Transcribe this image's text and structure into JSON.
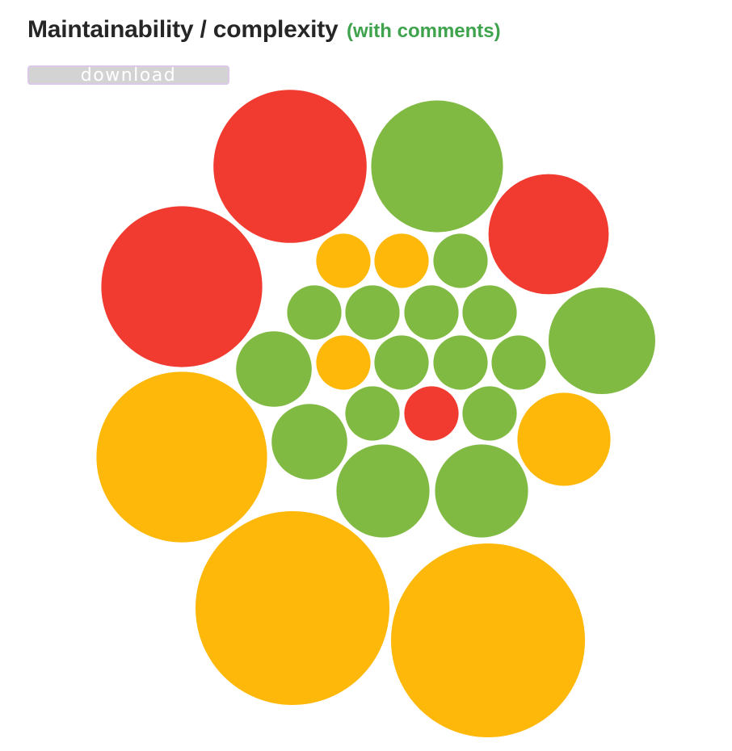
{
  "header": {
    "title": "Maintainability / complexity",
    "subtitle": "(with comments)",
    "subtitle_color": "#3fa34d"
  },
  "toolbar": {
    "download_label": "download"
  },
  "colors": {
    "red": "#f13b30",
    "green": "#80ba42",
    "yellow": "#fdb809"
  },
  "chart_data": {
    "type": "bubble",
    "title": "Maintainability / complexity",
    "subtitle": "(with comments)",
    "note": "Packed bubbles; each bubble's size encodes a value (relative to the largest = 1.0), color encodes maintainability status.",
    "bubbles": [
      {
        "status": "red",
        "size": 0.79
      },
      {
        "status": "green",
        "size": 0.68
      },
      {
        "status": "red",
        "size": 0.62
      },
      {
        "status": "red",
        "size": 0.83
      },
      {
        "status": "green",
        "size": 0.55
      },
      {
        "status": "yellow",
        "size": 0.88
      },
      {
        "status": "yellow",
        "size": 0.48
      },
      {
        "status": "yellow",
        "size": 1.0
      },
      {
        "status": "yellow",
        "size": 1.0
      },
      {
        "status": "green",
        "size": 0.48
      },
      {
        "status": "green",
        "size": 0.48
      },
      {
        "status": "green",
        "size": 0.39
      },
      {
        "status": "green",
        "size": 0.39
      },
      {
        "status": "yellow",
        "size": 0.28
      },
      {
        "status": "yellow",
        "size": 0.28
      },
      {
        "status": "green",
        "size": 0.28
      },
      {
        "status": "green",
        "size": 0.28
      },
      {
        "status": "green",
        "size": 0.28
      },
      {
        "status": "green",
        "size": 0.28
      },
      {
        "status": "green",
        "size": 0.28
      },
      {
        "status": "yellow",
        "size": 0.28
      },
      {
        "status": "green",
        "size": 0.28
      },
      {
        "status": "green",
        "size": 0.28
      },
      {
        "status": "green",
        "size": 0.28
      },
      {
        "status": "green",
        "size": 0.28
      },
      {
        "status": "red",
        "size": 0.28
      },
      {
        "status": "green",
        "size": 0.28
      }
    ]
  }
}
